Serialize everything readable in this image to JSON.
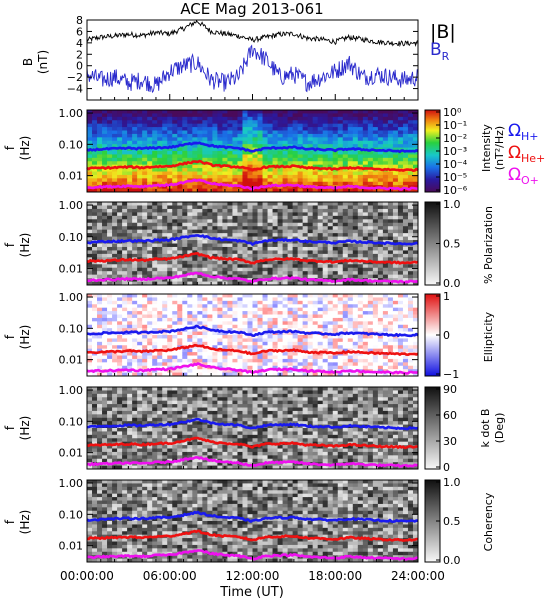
{
  "title": "ACE Mag 2013-061",
  "time_axis": {
    "label": "Time (UT)",
    "ticks": [
      "00:00:00",
      "06:00:00",
      "12:00:00",
      "18:00:00",
      "24:00:00"
    ],
    "range_hours": [
      0,
      24
    ]
  },
  "legend_b": {
    "total": "|B|",
    "radial": "B",
    "radial_sub": "R",
    "total_color": "#000000",
    "radial_color": "#2a2acc"
  },
  "gyro_legend": [
    {
      "symbol": "Ω",
      "sub": "H+",
      "color": "#1a1aee"
    },
    {
      "symbol": "Ω",
      "sub": "He+",
      "color": "#ee1111"
    },
    {
      "symbol": "Ω",
      "sub": "O+",
      "color": "#ee11ee"
    }
  ],
  "freq_axis": {
    "label": "f",
    "unit": "(Hz)",
    "ticks": [
      "1.00",
      "0.10",
      "0.01"
    ],
    "scale": "log"
  },
  "chart_data": [
    {
      "type": "line",
      "panel": "field",
      "ylabel": "B",
      "yunit": "(nT)",
      "ylim": [
        -6,
        8
      ],
      "yticks": [
        "8",
        "6",
        "4",
        "2",
        "0",
        "−2",
        "−4"
      ],
      "series": [
        {
          "name": "|B|",
          "color": "#000000",
          "x": [
            0,
            1,
            2,
            3,
            4,
            5,
            6,
            7,
            8,
            9,
            10,
            11,
            12,
            13,
            14,
            15,
            16,
            17,
            18,
            19,
            20,
            21,
            22,
            23,
            24
          ],
          "y": [
            4.5,
            5.0,
            5.2,
            5.5,
            5.3,
            5.8,
            5.6,
            6.5,
            7.8,
            6.0,
            5.6,
            5.2,
            4.5,
            5.0,
            5.5,
            5.6,
            4.8,
            4.6,
            4.2,
            5.0,
            4.6,
            4.2,
            4.0,
            3.9,
            4.0
          ]
        },
        {
          "name": "B_R",
          "color": "#2a2acc",
          "x": [
            0,
            1,
            2,
            3,
            4,
            5,
            6,
            7,
            8,
            9,
            10,
            11,
            12,
            13,
            14,
            15,
            16,
            17,
            18,
            19,
            20,
            21,
            22,
            23,
            24
          ],
          "y": [
            -1.5,
            -2.5,
            -2.0,
            -3.0,
            -2.5,
            -3.5,
            -1.0,
            0.0,
            0.5,
            -2.5,
            -3.0,
            -2.0,
            3.0,
            1.0,
            -2.0,
            -1.5,
            -3.0,
            -2.0,
            -1.0,
            0.5,
            -2.0,
            -1.5,
            -2.0,
            -2.5,
            -2.0
          ]
        }
      ]
    },
    {
      "type": "heatmap",
      "panel": "intensity",
      "colorbar_label": "Intensity",
      "colorbar_unit": "(nT²/Hz)",
      "colorbar_scale": "log",
      "colorbar_ticks": [
        "10⁰",
        "10⁻¹",
        "10⁻²",
        "10⁻³",
        "10⁻⁴",
        "10⁻⁵",
        "10⁻⁶"
      ],
      "colormap": "rainbow"
    },
    {
      "type": "heatmap",
      "panel": "polarization",
      "colorbar_label": "% Polarization",
      "colorbar_ticks": [
        "1.0",
        "0.5",
        "0.0"
      ],
      "colormap": "grayscale"
    },
    {
      "type": "heatmap",
      "panel": "ellipticity",
      "colorbar_label": "Ellipticity",
      "colorbar_ticks": [
        "1",
        "0",
        "−1"
      ],
      "colormap": "blue-white-red"
    },
    {
      "type": "heatmap",
      "panel": "kdotb",
      "colorbar_label": "k dot B",
      "colorbar_unit": "(Deg)",
      "colorbar_ticks": [
        "90",
        "60",
        "30",
        "0"
      ],
      "colormap": "grayscale"
    },
    {
      "type": "heatmap",
      "panel": "coherency",
      "colorbar_label": "Coherency",
      "colorbar_ticks": [
        "1.0",
        "0.5",
        "0.0"
      ],
      "colormap": "grayscale"
    },
    {
      "type": "line",
      "panel": "gyrofrequency-overlays",
      "x": [
        0,
        1,
        2,
        3,
        4,
        5,
        6,
        7,
        8,
        9,
        10,
        11,
        12,
        13,
        14,
        15,
        16,
        17,
        18,
        19,
        20,
        21,
        22,
        23,
        24
      ],
      "series": [
        {
          "name": "ΩH+",
          "color": "#1a1aee",
          "y": [
            0.065,
            0.07,
            0.072,
            0.075,
            0.073,
            0.078,
            0.08,
            0.095,
            0.115,
            0.09,
            0.08,
            0.075,
            0.06,
            0.075,
            0.078,
            0.08,
            0.07,
            0.068,
            0.065,
            0.072,
            0.068,
            0.065,
            0.062,
            0.06,
            0.062
          ]
        },
        {
          "name": "ΩHe+",
          "color": "#ee1111",
          "y": [
            0.017,
            0.0175,
            0.018,
            0.019,
            0.018,
            0.0195,
            0.02,
            0.024,
            0.029,
            0.022,
            0.02,
            0.019,
            0.015,
            0.019,
            0.0195,
            0.02,
            0.0175,
            0.017,
            0.016,
            0.018,
            0.017,
            0.016,
            0.0155,
            0.015,
            0.0155
          ]
        },
        {
          "name": "ΩO+",
          "color": "#ee11ee",
          "y": [
            0.0042,
            0.0044,
            0.0045,
            0.0047,
            0.0045,
            0.0049,
            0.005,
            0.006,
            0.0072,
            0.0056,
            0.005,
            0.0047,
            0.0038,
            0.0047,
            0.0049,
            0.005,
            0.0044,
            0.0042,
            0.004,
            0.0045,
            0.0042,
            0.004,
            0.0039,
            0.0038,
            0.0039
          ]
        }
      ]
    }
  ]
}
